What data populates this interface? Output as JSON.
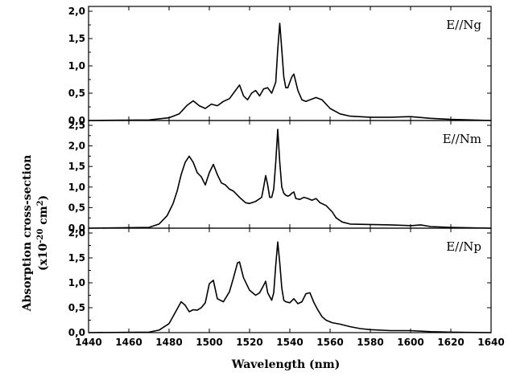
{
  "chart_data": {
    "type": "line",
    "xlabel": "Wavelength (nm)",
    "ylabel_line1": "Absorption cross-section",
    "ylabel_line2_prefix": "(x10",
    "ylabel_line2_exp": "-20",
    "ylabel_line2_mid": " cm",
    "ylabel_line2_exp2": "2",
    "ylabel_line2_suffix": ")",
    "xlim": [
      1440,
      1640
    ],
    "x_ticks": [
      "1440",
      "1460",
      "1480",
      "1500",
      "1520",
      "1540",
      "1560",
      "1580",
      "1600",
      "1620",
      "1640"
    ],
    "panels": [
      {
        "label": "E//Ng",
        "ylim": [
          0,
          2.0
        ],
        "y_ticks": [
          "0,0",
          "0,5",
          "1,0",
          "1,5",
          "2,0"
        ],
        "y_tick_values": [
          0,
          0.5,
          1.0,
          1.5,
          2.0
        ],
        "series": {
          "x": [
            1440,
            1470,
            1480,
            1485,
            1489,
            1492,
            1495,
            1498,
            1501,
            1504,
            1507,
            1510,
            1512,
            1515,
            1517,
            1519,
            1521,
            1523,
            1525,
            1527,
            1529,
            1531,
            1533,
            1534,
            1535,
            1536,
            1537,
            1538,
            1539,
            1541,
            1542,
            1544,
            1546,
            1548,
            1550,
            1553,
            1556,
            1560,
            1565,
            1570,
            1580,
            1590,
            1600,
            1610,
            1620,
            1640
          ],
          "y": [
            0.0,
            0.01,
            0.05,
            0.12,
            0.28,
            0.36,
            0.27,
            0.22,
            0.3,
            0.27,
            0.35,
            0.4,
            0.5,
            0.65,
            0.45,
            0.38,
            0.5,
            0.55,
            0.45,
            0.58,
            0.6,
            0.5,
            0.7,
            1.3,
            1.78,
            1.3,
            0.8,
            0.6,
            0.6,
            0.8,
            0.85,
            0.55,
            0.38,
            0.35,
            0.38,
            0.42,
            0.38,
            0.22,
            0.12,
            0.08,
            0.06,
            0.06,
            0.07,
            0.04,
            0.02,
            0.0
          ]
        }
      },
      {
        "label": "E//Nm",
        "ylim": [
          0,
          2.5
        ],
        "y_ticks": [
          "0,0",
          "0,5",
          "1,0",
          "1,5",
          "2,0",
          "2,5"
        ],
        "y_tick_values": [
          0,
          0.5,
          1.0,
          1.5,
          2.0,
          2.5
        ],
        "series": {
          "x": [
            1440,
            1470,
            1475,
            1479,
            1482,
            1484,
            1486,
            1488,
            1490,
            1492,
            1494,
            1496,
            1498,
            1500,
            1502,
            1504,
            1506,
            1508,
            1510,
            1512,
            1515,
            1518,
            1520,
            1523,
            1526,
            1527,
            1528,
            1529,
            1530,
            1531,
            1532,
            1533,
            1534,
            1535,
            1536,
            1537,
            1538,
            1539,
            1540,
            1541,
            1542,
            1543,
            1545,
            1547,
            1549,
            1551,
            1553,
            1555,
            1558,
            1561,
            1563,
            1566,
            1570,
            1580,
            1590,
            1600,
            1605,
            1610,
            1620,
            1640
          ],
          "y": [
            0.0,
            0.02,
            0.1,
            0.3,
            0.6,
            0.9,
            1.3,
            1.6,
            1.75,
            1.6,
            1.35,
            1.25,
            1.05,
            1.35,
            1.55,
            1.3,
            1.1,
            1.05,
            0.95,
            0.9,
            0.75,
            0.62,
            0.6,
            0.65,
            0.75,
            1.0,
            1.28,
            1.05,
            0.75,
            0.75,
            0.95,
            1.6,
            2.4,
            1.6,
            1.0,
            0.85,
            0.8,
            0.78,
            0.8,
            0.85,
            0.88,
            0.72,
            0.7,
            0.75,
            0.72,
            0.68,
            0.72,
            0.62,
            0.55,
            0.4,
            0.25,
            0.15,
            0.1,
            0.09,
            0.08,
            0.06,
            0.08,
            0.04,
            0.02,
            0.0
          ]
        }
      },
      {
        "label": "E//Np",
        "ylim": [
          0,
          2.0
        ],
        "y_ticks": [
          "0,0",
          "0,5",
          "1,0",
          "1,5",
          "2,0"
        ],
        "y_tick_values": [
          0,
          0.5,
          1.0,
          1.5,
          2.0
        ],
        "series": {
          "x": [
            1440,
            1470,
            1475,
            1480,
            1483,
            1486,
            1488,
            1490,
            1492,
            1494,
            1496,
            1498,
            1500,
            1502,
            1504,
            1507,
            1510,
            1512,
            1514,
            1515,
            1517,
            1520,
            1523,
            1525,
            1527,
            1528,
            1529,
            1531,
            1532,
            1533,
            1534,
            1535,
            1536,
            1537,
            1538,
            1540,
            1542,
            1544,
            1546,
            1548,
            1550,
            1552,
            1554,
            1556,
            1558,
            1561,
            1565,
            1570,
            1575,
            1580,
            1590,
            1600,
            1610,
            1620,
            1640
          ],
          "y": [
            0.0,
            0.01,
            0.05,
            0.18,
            0.4,
            0.62,
            0.55,
            0.42,
            0.46,
            0.45,
            0.5,
            0.6,
            0.98,
            1.05,
            0.68,
            0.62,
            0.82,
            1.1,
            1.4,
            1.42,
            1.1,
            0.85,
            0.75,
            0.8,
            0.95,
            1.03,
            0.8,
            0.65,
            0.8,
            1.35,
            1.82,
            1.4,
            0.9,
            0.65,
            0.62,
            0.6,
            0.68,
            0.58,
            0.62,
            0.78,
            0.8,
            0.6,
            0.45,
            0.32,
            0.25,
            0.2,
            0.17,
            0.12,
            0.08,
            0.06,
            0.04,
            0.04,
            0.02,
            0.01,
            0.0
          ]
        }
      }
    ]
  }
}
